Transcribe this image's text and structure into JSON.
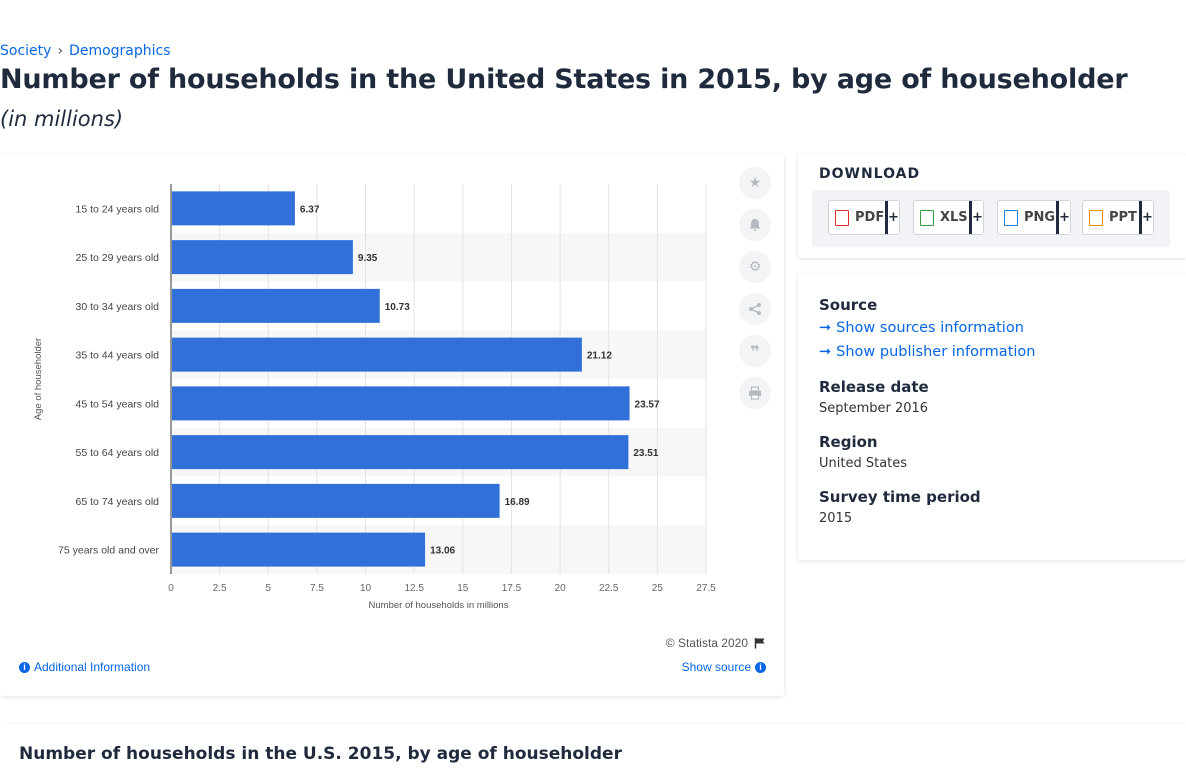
{
  "breadcrumb": {
    "items": [
      "Society",
      "Demographics"
    ],
    "separator": "›"
  },
  "page": {
    "title": "Number of households in the United States in 2015, by age of householder",
    "subtitle": "(in millions)"
  },
  "chart_data": {
    "type": "bar",
    "orientation": "horizontal",
    "categories": [
      "15 to 24 years old",
      "25 to 29 years old",
      "30 to 34 years old",
      "35 to 44 years old",
      "45 to 54 years old",
      "55 to 64 years old",
      "65 to 74 years old",
      "75 years old and over"
    ],
    "values": [
      6.37,
      9.35,
      10.73,
      21.12,
      23.57,
      23.51,
      16.89,
      13.06
    ],
    "value_labels": [
      "6.37",
      "9.35",
      "10.73",
      "21.12",
      "23.57",
      "23.51",
      "16.89",
      "13.06"
    ],
    "xlabel": "Number of households in millions",
    "ylabel": "Age of householder",
    "xlim": [
      0,
      27.5
    ],
    "x_ticks": [
      "0",
      "2.5",
      "5",
      "7.5",
      "10",
      "12.5",
      "15",
      "17.5",
      "20",
      "22.5",
      "25",
      "27.5"
    ],
    "x_tick_values": [
      0,
      2.5,
      5,
      7.5,
      10,
      12.5,
      15,
      17.5,
      20,
      22.5,
      25,
      27.5
    ],
    "grid": true,
    "bar_color": "#3070d8"
  },
  "chart_footer": {
    "copyright": "© Statista 2020",
    "additional_info": "Additional Information",
    "show_source": "Show source"
  },
  "tools": [
    "star-icon",
    "bell-icon",
    "gear-icon",
    "share-icon",
    "quote-icon",
    "print-icon"
  ],
  "download": {
    "title": "DOWNLOAD",
    "buttons": [
      {
        "label": "PDF",
        "icon": "pdf-file-icon",
        "color": "#d9342b"
      },
      {
        "label": "XLS",
        "icon": "xls-file-icon",
        "color": "#2f9e44"
      },
      {
        "label": "PNG",
        "icon": "png-file-icon",
        "color": "#1c7ed6"
      },
      {
        "label": "PPT",
        "icon": "ppt-file-icon",
        "color": "#f08c00"
      }
    ],
    "plus": "+"
  },
  "meta": {
    "source_heading": "Source",
    "show_sources": "Show sources information",
    "show_publisher": "Show publisher information",
    "release_heading": "Release date",
    "release_value": "September 2016",
    "region_heading": "Region",
    "region_value": "United States",
    "survey_heading": "Survey time period",
    "survey_value": "2015"
  },
  "bottom": {
    "title": "Number of households in the U.S. 2015, by age of householder"
  },
  "colors": {
    "link": "#0666e5",
    "heading": "#1f2b3d",
    "bar": "#3070d8"
  }
}
